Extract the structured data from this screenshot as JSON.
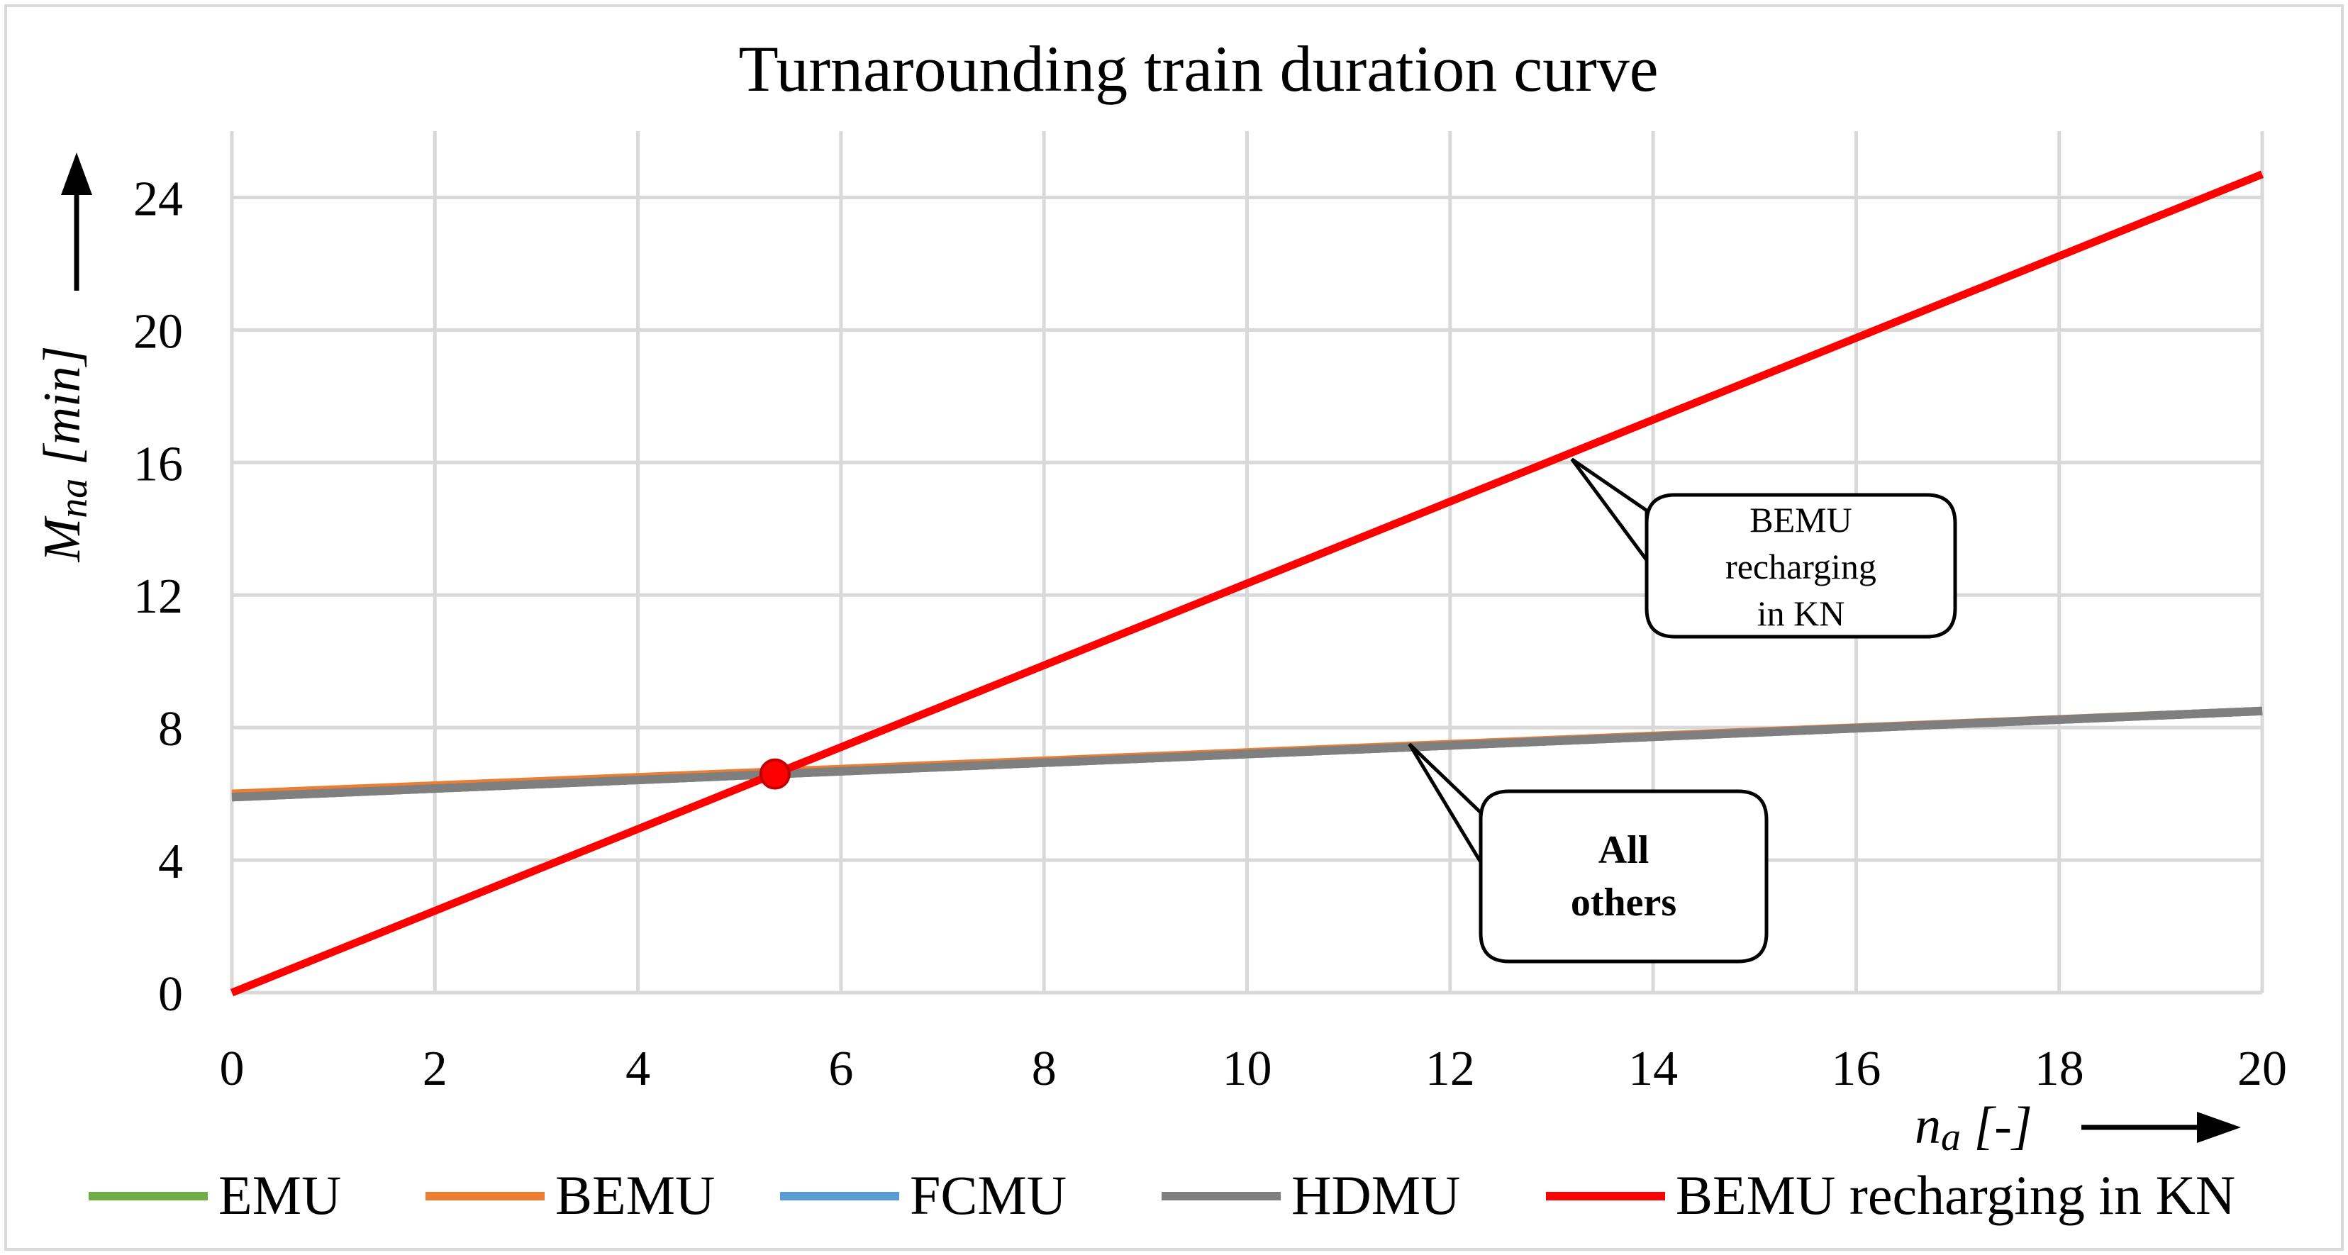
{
  "chart_data": {
    "type": "line",
    "title": "Turnarounding train duration curve",
    "xlabel": "na [-]",
    "xlabel_main": "n",
    "xlabel_sub": "a",
    "xlabel_unit": " [-]",
    "ylabel": "Mna [min]",
    "ylabel_main": "M",
    "ylabel_sub": "na",
    "ylabel_unit": " [min]",
    "xlim": [
      0,
      20
    ],
    "ylim": [
      0,
      26
    ],
    "x_ticks": [
      0,
      2,
      4,
      6,
      8,
      10,
      12,
      14,
      16,
      18,
      20
    ],
    "y_ticks": [
      0,
      4,
      8,
      12,
      16,
      20,
      24
    ],
    "grid": true,
    "legend_position": "bottom",
    "series": [
      {
        "name": "EMU",
        "color": "#70ad47",
        "x": [
          0,
          20
        ],
        "y": [
          5.9,
          8.5
        ]
      },
      {
        "name": "BEMU",
        "color": "#ed7d31",
        "x": [
          0,
          20
        ],
        "y": [
          6.0,
          8.5
        ]
      },
      {
        "name": "FCMU",
        "color": "#5b9bd5",
        "x": [
          0,
          20
        ],
        "y": [
          5.9,
          8.5
        ]
      },
      {
        "name": "HDMU",
        "color": "#7f7f7f",
        "x": [
          0,
          20
        ],
        "y": [
          5.9,
          8.5
        ]
      },
      {
        "name": "BEMU recharging in KN",
        "color": "#ff0000",
        "x": [
          0,
          20
        ],
        "y": [
          0,
          24.7
        ]
      }
    ],
    "intersection": {
      "x": 5.35,
      "y": 6.6,
      "color": "#ff0000"
    },
    "annotations": [
      {
        "id": "bemu-callout",
        "lines": [
          "BEMU",
          "recharging",
          "in KN"
        ],
        "bold": false,
        "target": {
          "x": 13.2,
          "y": 16.1
        }
      },
      {
        "id": "others-callout",
        "lines": [
          "All",
          "others"
        ],
        "bold": true,
        "target": {
          "x": 11.6,
          "y": 7.5
        }
      }
    ]
  }
}
